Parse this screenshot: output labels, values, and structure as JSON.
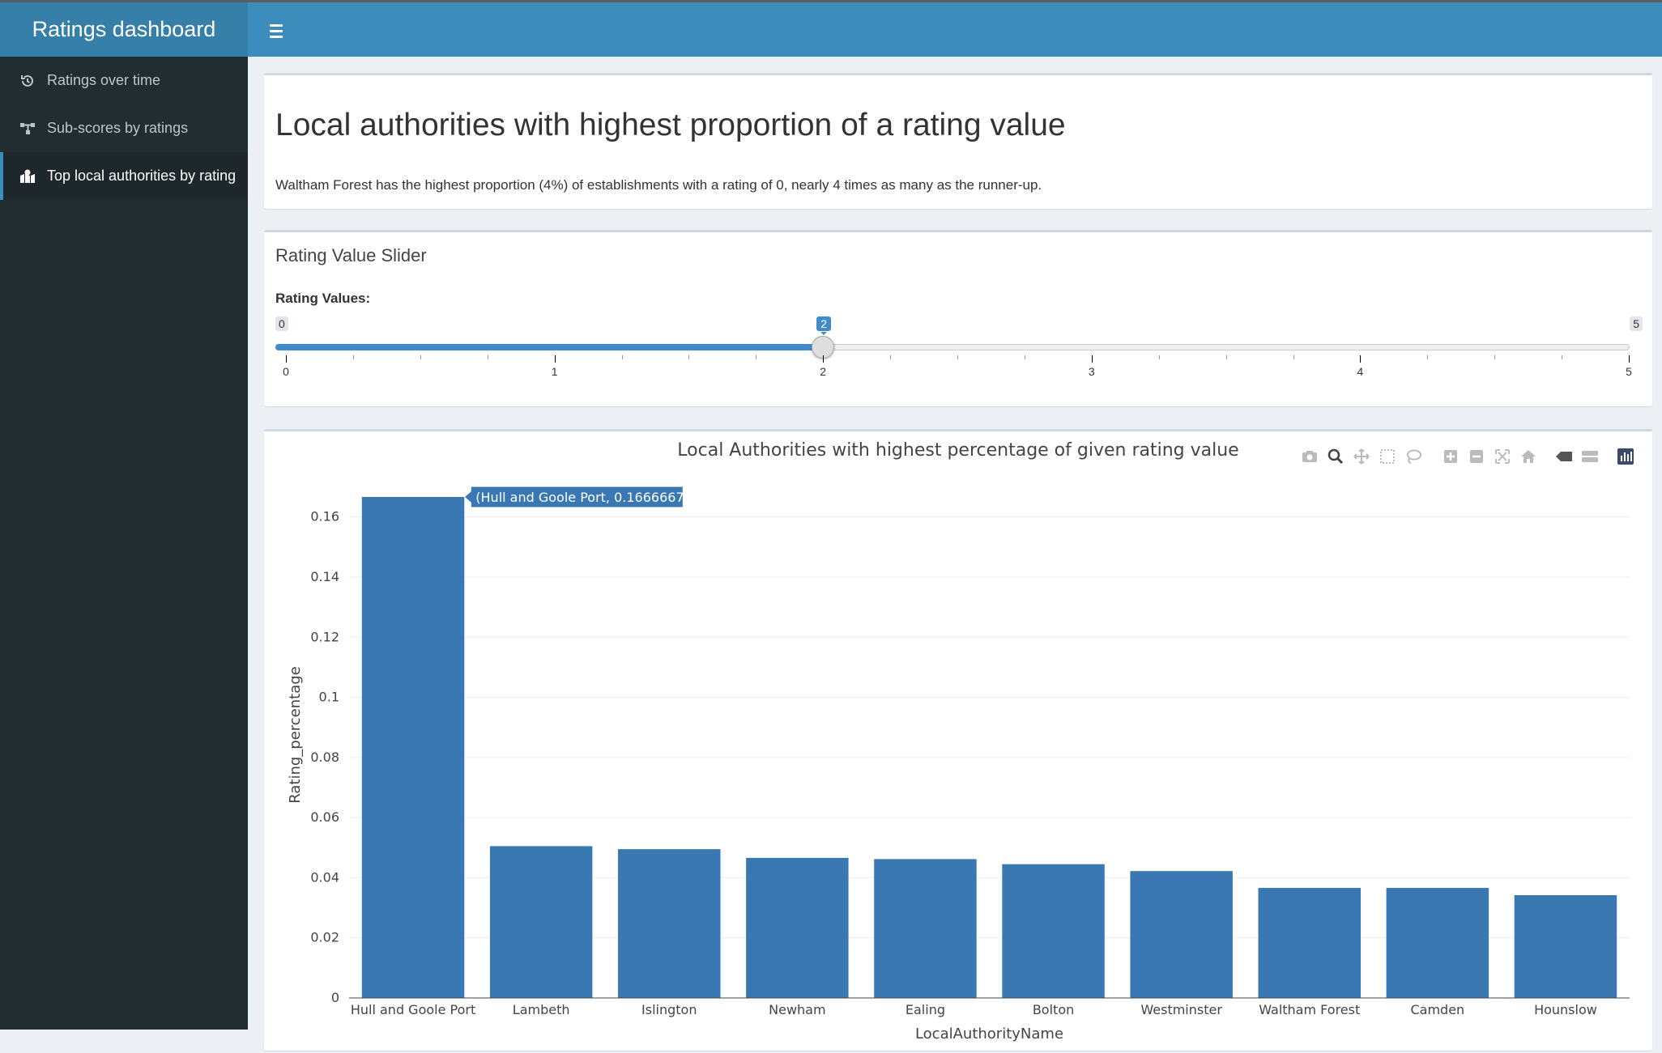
{
  "app": {
    "title": "Ratings dashboard"
  },
  "sidebar": {
    "items": [
      {
        "label": "Ratings over time",
        "icon": "history-icon",
        "active": false
      },
      {
        "label": "Sub-scores by ratings",
        "icon": "sitemap-icon",
        "active": false
      },
      {
        "label": "Top local authorities by rating",
        "icon": "map-marker-icon",
        "active": true
      }
    ]
  },
  "intro": {
    "title": "Local authorities with highest proportion of a rating value",
    "description": "Waltham Forest has the highest proportion (4%) of establishments with a rating of 0, nearly 4 times as many as the runner-up."
  },
  "slider_box": {
    "title": "Rating Value Slider",
    "label": "Rating Values:",
    "min": "0",
    "max": "5",
    "value": "2",
    "value_number": 2,
    "ticks": [
      "0",
      "1",
      "2",
      "3",
      "4",
      "5"
    ]
  },
  "colors": {
    "accent": "#3c8dbc",
    "bar": "#3a78b4",
    "sidebar": "#222d32"
  },
  "modebar": [
    "camera-icon",
    "zoom-icon",
    "pan-icon",
    "box-select-icon",
    "lasso-icon",
    "zoom-in-icon",
    "zoom-out-icon",
    "autoscale-icon",
    "reset-axes-icon",
    "spike-lines-icon",
    "compare-hover-icon",
    "plotly-logo-icon"
  ],
  "chart_data": {
    "type": "bar",
    "title": "Local Authorities with highest percentage of given rating value",
    "xlabel": "LocalAuthorityName",
    "ylabel": "Rating_percentage",
    "ylim": [
      0,
      0.175
    ],
    "yticks": [
      "0",
      "0.02",
      "0.04",
      "0.06",
      "0.08",
      "0.1",
      "0.12",
      "0.14",
      "0.16"
    ],
    "ytick_values": [
      0,
      0.02,
      0.04,
      0.06,
      0.08,
      0.1,
      0.12,
      0.14,
      0.16
    ],
    "categories": [
      "Hull and Goole Port",
      "Lambeth",
      "Islington",
      "Newham",
      "Ealing",
      "Bolton",
      "Westminster",
      "Waltham Forest",
      "Camden",
      "Hounslow"
    ],
    "values": [
      0.1666667,
      0.0505,
      0.0495,
      0.0466,
      0.0462,
      0.0445,
      0.0422,
      0.0366,
      0.0366,
      0.0342
    ],
    "grid": true,
    "tooltip": "(Hull and Goole Port, 0.1666667)"
  }
}
